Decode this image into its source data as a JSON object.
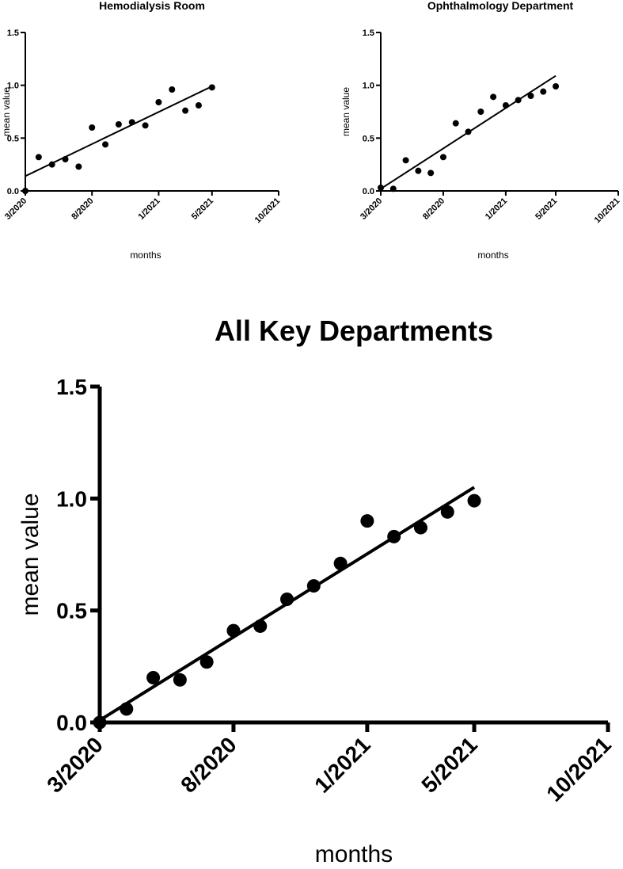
{
  "chart_data": [
    {
      "id": "hemo",
      "type": "scatter",
      "title": "Hemodialysis Room",
      "xlabel": "months",
      "ylabel": "mean value",
      "ylim": [
        0,
        1.5
      ],
      "yticks": [
        "0.0",
        "0.5",
        "1.0",
        "1.5"
      ],
      "xticks": [
        "3/2020",
        "8/2020",
        "1/2021",
        "5/2021",
        "10/2021"
      ],
      "xtick_dates": [
        "2020-03",
        "2020-08",
        "2021-01",
        "2021-05",
        "2021-10"
      ],
      "points": [
        {
          "x": "2020-03",
          "y": 0.0
        },
        {
          "x": "2020-04",
          "y": 0.32
        },
        {
          "x": "2020-05",
          "y": 0.25
        },
        {
          "x": "2020-06",
          "y": 0.3
        },
        {
          "x": "2020-07",
          "y": 0.23
        },
        {
          "x": "2020-08",
          "y": 0.6
        },
        {
          "x": "2020-09",
          "y": 0.44
        },
        {
          "x": "2020-10",
          "y": 0.63
        },
        {
          "x": "2020-11",
          "y": 0.65
        },
        {
          "x": "2020-12",
          "y": 0.62
        },
        {
          "x": "2021-01",
          "y": 0.84
        },
        {
          "x": "2021-02",
          "y": 0.96
        },
        {
          "x": "2021-03",
          "y": 0.76
        },
        {
          "x": "2021-04",
          "y": 0.81
        },
        {
          "x": "2021-05",
          "y": 0.98
        }
      ],
      "fit": {
        "x": [
          "2020-03",
          "2021-05"
        ],
        "y": [
          0.14,
          0.99
        ]
      }
    },
    {
      "id": "oph",
      "type": "scatter",
      "title": "Ophthalmology Department",
      "xlabel": "months",
      "ylabel": "mean value",
      "ylim": [
        0,
        1.5
      ],
      "yticks": [
        "0.0",
        "0.5",
        "1.0",
        "1.5"
      ],
      "xticks": [
        "3/2020",
        "8/2020",
        "1/2021",
        "5/2021",
        "10/2021"
      ],
      "xtick_dates": [
        "2020-03",
        "2020-08",
        "2021-01",
        "2021-05",
        "2021-10"
      ],
      "points": [
        {
          "x": "2020-03",
          "y": 0.03
        },
        {
          "x": "2020-04",
          "y": 0.02
        },
        {
          "x": "2020-05",
          "y": 0.29
        },
        {
          "x": "2020-06",
          "y": 0.19
        },
        {
          "x": "2020-07",
          "y": 0.17
        },
        {
          "x": "2020-08",
          "y": 0.32
        },
        {
          "x": "2020-09",
          "y": 0.64
        },
        {
          "x": "2020-10",
          "y": 0.56
        },
        {
          "x": "2020-11",
          "y": 0.75
        },
        {
          "x": "2020-12",
          "y": 0.89
        },
        {
          "x": "2021-01",
          "y": 0.81
        },
        {
          "x": "2021-02",
          "y": 0.86
        },
        {
          "x": "2021-03",
          "y": 0.9
        },
        {
          "x": "2021-04",
          "y": 0.94
        },
        {
          "x": "2021-05",
          "y": 0.99
        }
      ],
      "fit": {
        "x": [
          "2020-03",
          "2021-05"
        ],
        "y": [
          0.02,
          1.09
        ]
      }
    },
    {
      "id": "all",
      "type": "scatter",
      "title": "All Key Departments",
      "xlabel": "months",
      "ylabel": "mean value",
      "ylim": [
        0,
        1.5
      ],
      "yticks": [
        "0.0",
        "0.5",
        "1.0",
        "1.5"
      ],
      "xticks": [
        "3/2020",
        "8/2020",
        "1/2021",
        "5/2021",
        "10/2021"
      ],
      "xtick_dates": [
        "2020-03",
        "2020-08",
        "2021-01",
        "2021-05",
        "2021-10"
      ],
      "points": [
        {
          "x": "2020-03",
          "y": 0.0
        },
        {
          "x": "2020-04",
          "y": 0.06
        },
        {
          "x": "2020-05",
          "y": 0.2
        },
        {
          "x": "2020-06",
          "y": 0.19
        },
        {
          "x": "2020-07",
          "y": 0.27
        },
        {
          "x": "2020-08",
          "y": 0.41
        },
        {
          "x": "2020-09",
          "y": 0.43
        },
        {
          "x": "2020-10",
          "y": 0.55
        },
        {
          "x": "2020-11",
          "y": 0.61
        },
        {
          "x": "2020-12",
          "y": 0.71
        },
        {
          "x": "2021-01",
          "y": 0.9
        },
        {
          "x": "2021-02",
          "y": 0.83
        },
        {
          "x": "2021-03",
          "y": 0.87
        },
        {
          "x": "2021-04",
          "y": 0.94
        },
        {
          "x": "2021-05",
          "y": 0.99
        }
      ],
      "fit": {
        "x": [
          "2020-03",
          "2021-05"
        ],
        "y": [
          0.01,
          1.05
        ]
      }
    }
  ]
}
